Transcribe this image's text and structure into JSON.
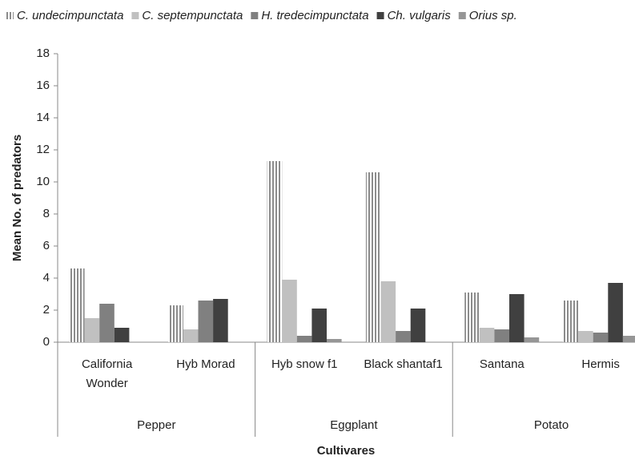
{
  "chart_data": {
    "type": "bar",
    "y_label": "Mean No. of predators",
    "x_label": "Cultivares",
    "categories": [
      "California Wonder",
      "Hyb Morad",
      "Hyb snow f1",
      "Black shantaf1",
      "Santana",
      "Hermis"
    ],
    "groups": [
      {
        "label": "Pepper",
        "size": 2
      },
      {
        "label": "Eggplant",
        "size": 2
      },
      {
        "label": "Potato",
        "size": 2
      }
    ],
    "series": [
      {
        "name": "C. undecimpunctata",
        "color": "#9a9a9a",
        "hatch": "vertical",
        "values": [
          4.6,
          2.3,
          11.3,
          10.6,
          3.1,
          2.6
        ]
      },
      {
        "name": "C. septempunctata",
        "color": "#c0c0c0",
        "values": [
          1.5,
          0.8,
          3.9,
          3.8,
          0.9,
          0.7
        ]
      },
      {
        "name": "H. tredecimpunctata",
        "color": "#808080",
        "values": [
          2.4,
          2.6,
          0.4,
          0.7,
          0.8,
          0.6
        ]
      },
      {
        "name": "Ch. vulgaris",
        "color": "#404040",
        "values": [
          0.9,
          2.7,
          2.1,
          2.1,
          3.0,
          3.7
        ]
      },
      {
        "name": "Orius sp.",
        "color": "#969696",
        "values": [
          0,
          0,
          0.2,
          0,
          0.3,
          0.4
        ]
      }
    ],
    "ylim": [
      0,
      18
    ],
    "yticks": [
      0,
      2,
      4,
      6,
      8,
      10,
      12,
      14,
      16,
      18
    ]
  }
}
